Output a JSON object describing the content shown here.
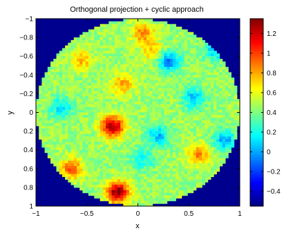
{
  "chart_data": {
    "type": "heatmap",
    "title": "Orthogonal projection + cyclic approach",
    "xlabel": "x",
    "ylabel": "y",
    "xlim": [
      -1,
      1
    ],
    "ylim": [
      -1,
      1
    ],
    "y_axis_direction": "reversed",
    "x_ticks": [
      "−1",
      "−0.5",
      "0",
      "0.5",
      "1"
    ],
    "x_tick_values": [
      -1,
      -0.5,
      0,
      0.5,
      1
    ],
    "y_ticks": [
      "−1",
      "−0.8",
      "−0.6",
      "−0.4",
      "−0.2",
      "0",
      "0.2",
      "0.4",
      "0.6",
      "0.8",
      "1"
    ],
    "y_tick_values": [
      -1,
      -0.8,
      -0.6,
      -0.4,
      -0.2,
      0,
      0.2,
      0.4,
      0.6,
      0.8,
      1
    ],
    "colormap": "jet",
    "clim": [
      -0.55,
      1.35
    ],
    "colorbar_ticks": [
      "1.2",
      "1",
      "0.8",
      "0.6",
      "0.4",
      "0.2",
      "0",
      "−0.2",
      "−0.4"
    ],
    "colorbar_tick_values": [
      1.2,
      1,
      0.8,
      0.6,
      0.4,
      0.2,
      0,
      -0.2,
      -0.4
    ],
    "background_value": -0.55,
    "domain": "unit disk",
    "field_mean": 0.45,
    "hotspots": [
      {
        "x": -0.2,
        "y": 0.85,
        "value": 1.35
      },
      {
        "x": -0.25,
        "y": 0.15,
        "value": 1.3
      },
      {
        "x": -0.65,
        "y": 0.6,
        "value": 0.95
      },
      {
        "x": 0.05,
        "y": -0.85,
        "value": 0.9
      },
      {
        "x": -0.15,
        "y": -0.3,
        "value": 0.8
      },
      {
        "x": 0.6,
        "y": 0.45,
        "value": 0.85
      },
      {
        "x": -0.55,
        "y": -0.55,
        "value": 0.75
      },
      {
        "x": 0.15,
        "y": -0.65,
        "value": 0.75
      }
    ],
    "coldspots": [
      {
        "x": 0.3,
        "y": -0.55,
        "value": -0.1
      },
      {
        "x": 0.55,
        "y": -0.15,
        "value": 0.05
      },
      {
        "x": 0.2,
        "y": 0.25,
        "value": 0.05
      },
      {
        "x": 0.85,
        "y": 0.3,
        "value": 0.0
      },
      {
        "x": 0.75,
        "y": -0.65,
        "value": 0.1
      },
      {
        "x": -0.75,
        "y": -0.05,
        "value": 0.1
      },
      {
        "x": 0.05,
        "y": 0.5,
        "value": 0.15
      }
    ]
  }
}
